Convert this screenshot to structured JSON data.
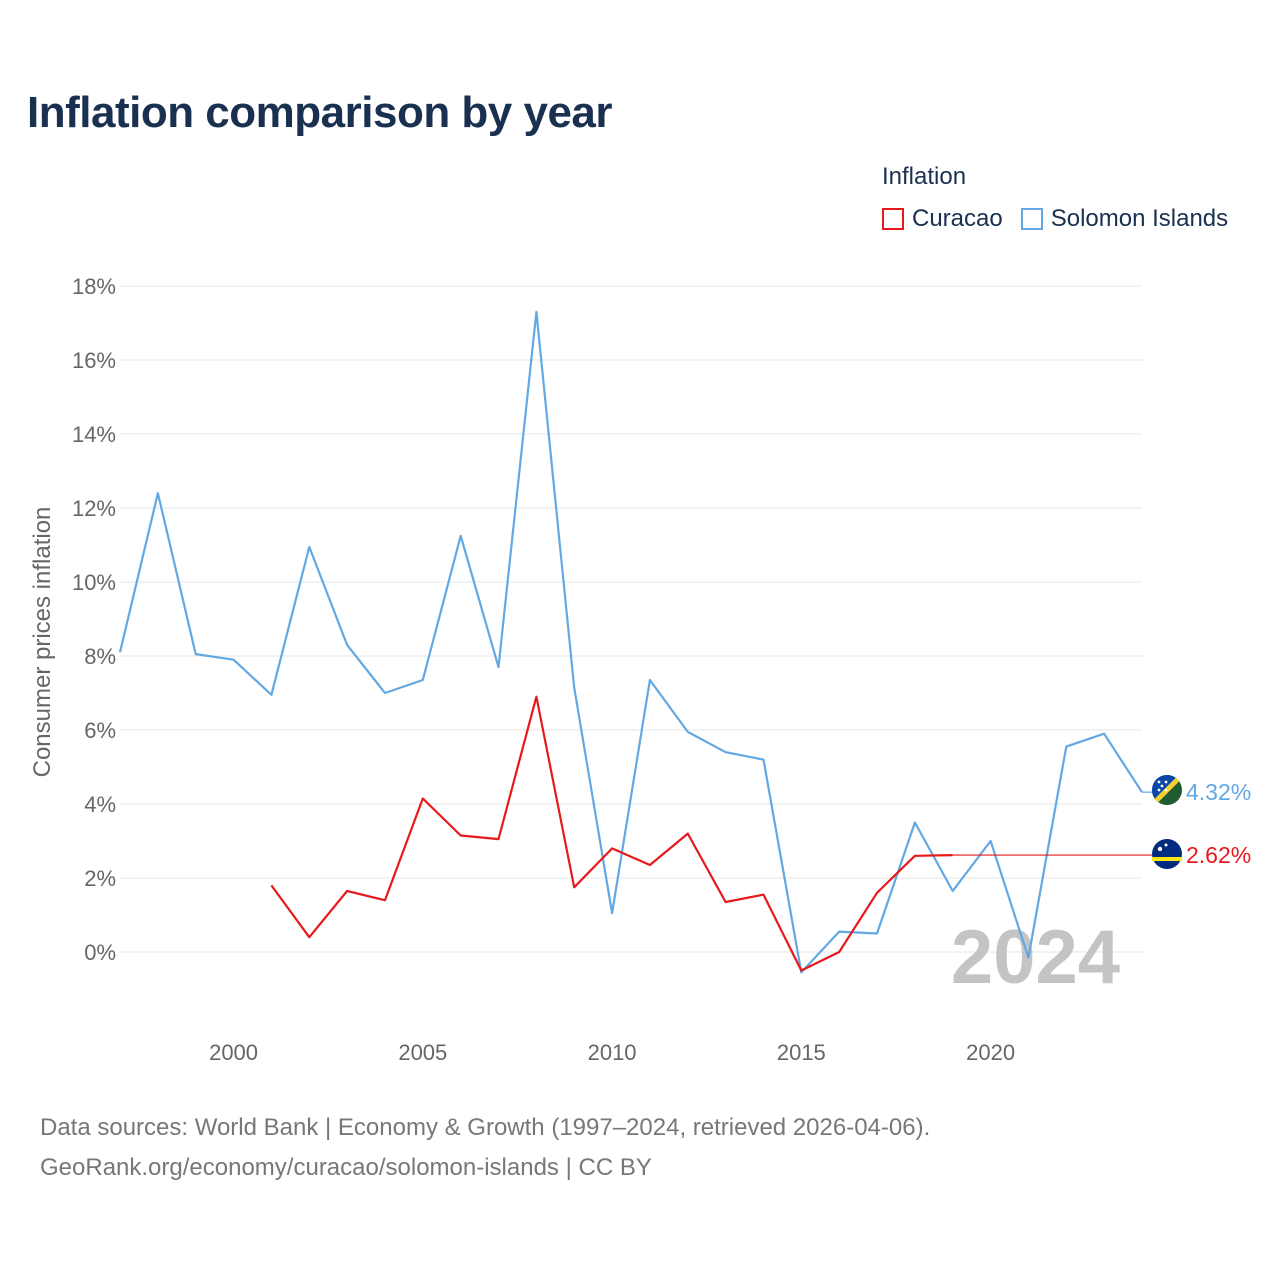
{
  "chart_data": {
    "type": "line",
    "title": "Inflation comparison by year",
    "legend_title": "Inflation",
    "ylabel": "Consumer prices inflation",
    "xlabel": "",
    "ylim": [
      -1.8,
      18
    ],
    "xlim": [
      1997,
      2024
    ],
    "y_ticks": [
      0,
      2,
      4,
      6,
      8,
      10,
      12,
      14,
      16,
      18
    ],
    "y_tick_labels": [
      "0%",
      "2%",
      "4%",
      "6%",
      "8%",
      "10%",
      "12%",
      "14%",
      "16%",
      "18%"
    ],
    "x_ticks": [
      2000,
      2005,
      2010,
      2015,
      2020
    ],
    "x_tick_labels": [
      "2000",
      "2005",
      "2010",
      "2015",
      "2020"
    ],
    "grid": true,
    "current_year": "2024",
    "series": [
      {
        "name": "Curacao",
        "color": "#e8191c",
        "x": [
          2001,
          2002,
          2003,
          2004,
          2005,
          2006,
          2007,
          2008,
          2009,
          2010,
          2011,
          2012,
          2013,
          2014,
          2015,
          2016,
          2017,
          2018,
          2019
        ],
        "values": [
          1.8,
          0.4,
          1.65,
          1.4,
          4.15,
          3.15,
          3.05,
          6.9,
          1.75,
          2.8,
          2.35,
          3.2,
          1.35,
          1.55,
          -0.5,
          0.0,
          1.6,
          2.6,
          2.62
        ],
        "end_label": "2.62%",
        "end_value": 2.62
      },
      {
        "name": "Solomon Islands",
        "color": "#62a8e5",
        "x": [
          1997,
          1998,
          1999,
          2000,
          2001,
          2002,
          2003,
          2004,
          2005,
          2006,
          2007,
          2008,
          2009,
          2010,
          2011,
          2012,
          2013,
          2014,
          2015,
          2016,
          2017,
          2018,
          2019,
          2020,
          2021,
          2022,
          2023,
          2024
        ],
        "values": [
          8.1,
          12.4,
          8.05,
          7.9,
          6.95,
          10.95,
          8.3,
          7.0,
          7.35,
          11.25,
          7.7,
          17.3,
          7.15,
          1.05,
          7.35,
          5.95,
          5.4,
          5.2,
          -0.55,
          0.55,
          0.5,
          3.5,
          1.65,
          3.0,
          -0.15,
          5.55,
          5.9,
          4.32
        ],
        "end_label": "4.32%",
        "end_value": 4.32
      }
    ]
  },
  "footer": {
    "line1": "Data sources: World Bank | Economy & Growth (1997–2024, retrieved 2026-04-06).",
    "line2": "GeoRank.org/economy/curacao/solomon-islands | CC BY"
  },
  "icons": {
    "curacao_flag": "curacao-flag-icon",
    "solomon_flag": "solomon-islands-flag-icon"
  }
}
